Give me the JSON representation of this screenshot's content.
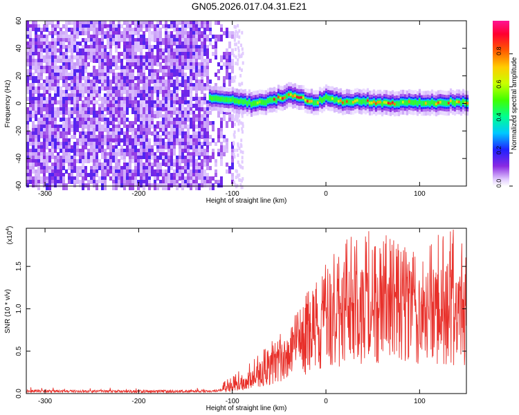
{
  "title": "GN05.2026.017.04.31.E21",
  "chart_data": [
    {
      "type": "heatmap",
      "title": "",
      "xlabel": "Height of straight line (km)",
      "ylabel": "Frequency (Hz)",
      "xlim": [
        -320,
        150
      ],
      "ylim": [
        -60,
        60
      ],
      "xticks": [
        -300,
        -200,
        -100,
        0,
        100
      ],
      "yticks": [
        60,
        40,
        20,
        0,
        -20,
        -40,
        -60
      ],
      "noise_region_km": [
        -320,
        -100
      ],
      "signal_start_km": -125,
      "signal_track": {
        "x": [
          -125,
          -110,
          -95,
          -80,
          -65,
          -50,
          -40,
          -30,
          -20,
          -10,
          0,
          10,
          20,
          30,
          50,
          70,
          90,
          110,
          130,
          150
        ],
        "freq_hz": [
          4,
          3,
          2,
          0,
          1,
          4,
          6,
          5,
          2,
          1,
          5,
          2,
          1,
          2,
          1,
          0,
          1,
          0,
          1,
          1
        ]
      },
      "colorbar": {
        "label": "Normalized spectral amplitude",
        "range": [
          0,
          1
        ],
        "ticks": [
          "0.0",
          "0.2",
          "0.4",
          "0.6",
          "0.8"
        ]
      }
    },
    {
      "type": "line",
      "title": "",
      "xlabel": "Height of straight line (km)",
      "ylabel": "SNR (10 * v/v)",
      "multiplier_base": "(x10",
      "multiplier_exp": "4",
      "multiplier_close": ")",
      "xlim": [
        -320,
        150
      ],
      "ylim": [
        0,
        1.95
      ],
      "xticks": [
        -300,
        -200,
        -100,
        0,
        100
      ],
      "yticks": [
        "0.0",
        "0.5",
        "1.0",
        "1.5"
      ],
      "color": "#e8302a",
      "envelope": {
        "x": [
          -320,
          -200,
          -120,
          -100,
          -80,
          -60,
          -40,
          -20,
          0,
          20,
          40,
          60,
          80,
          100,
          120,
          140,
          150
        ],
        "mean": [
          0.03,
          0.025,
          0.03,
          0.06,
          0.15,
          0.3,
          0.45,
          0.6,
          0.8,
          0.95,
          1.0,
          1.0,
          1.02,
          1.0,
          0.98,
          0.95,
          0.9
        ],
        "max": [
          0.08,
          0.07,
          0.09,
          0.2,
          0.4,
          0.6,
          0.8,
          1.2,
          1.55,
          1.8,
          1.95,
          1.9,
          1.8,
          1.7,
          1.9,
          1.95,
          1.75
        ]
      }
    }
  ]
}
